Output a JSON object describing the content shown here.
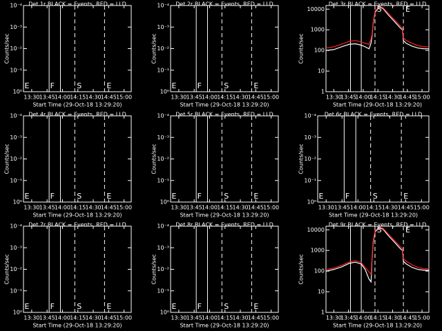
{
  "chart_data": [
    {
      "type": "line",
      "title": "Det 1r BLACK = Events, RED = LLD",
      "ylabel": "Counts/sec",
      "xlabel": "Start Time (29-Oct-18 13:29:20)",
      "log": false,
      "xlim": [
        22,
        127
      ],
      "xticks": [
        {
          "value": 30,
          "label": "13:30"
        },
        {
          "value": 45,
          "label": "13:45"
        },
        {
          "value": 60,
          "label": "14:00"
        },
        {
          "value": 75,
          "label": "14:15"
        },
        {
          "value": 90,
          "label": "14:30"
        },
        {
          "value": 105,
          "label": "14:45"
        },
        {
          "value": 120,
          "label": "15:00"
        }
      ],
      "ylim": [
        0,
        4
      ],
      "yticks": [
        {
          "value": 0,
          "label": "10⁰"
        },
        {
          "value": 1,
          "label": "10⁻¹"
        },
        {
          "value": 2,
          "label": "10⁻²"
        },
        {
          "value": 3,
          "label": "10⁻³"
        },
        {
          "value": 4,
          "label": "10⁻⁴"
        }
      ],
      "markers": [
        {
          "x": 47,
          "style": "solid"
        },
        {
          "x": 58,
          "style": "solid"
        },
        {
          "x": 72,
          "style": "dashed"
        },
        {
          "x": 101,
          "style": "dashed"
        }
      ],
      "labels": [
        {
          "text": "E",
          "x": 23
        },
        {
          "text": "F",
          "x": 48
        },
        {
          "text": "S",
          "x": 74
        },
        {
          "text": "E",
          "x": 103
        }
      ],
      "series": []
    },
    {
      "type": "line",
      "title": "Det 2r BLACK = Events, RED = LLD",
      "ylabel": "Counts/sec",
      "xlabel": "Start Time (29-Oct-18 13:29:20)",
      "log": false,
      "xlim": [
        22,
        127
      ],
      "xticks": [
        {
          "value": 30,
          "label": "13:30"
        },
        {
          "value": 45,
          "label": "13:45"
        },
        {
          "value": 60,
          "label": "14:00"
        },
        {
          "value": 75,
          "label": "14:15"
        },
        {
          "value": 90,
          "label": "14:30"
        },
        {
          "value": 105,
          "label": "14:45"
        },
        {
          "value": 120,
          "label": "15:00"
        }
      ],
      "ylim": [
        0,
        4
      ],
      "yticks": [
        {
          "value": 0,
          "label": "10⁰"
        },
        {
          "value": 1,
          "label": "10⁻¹"
        },
        {
          "value": 2,
          "label": "10⁻²"
        },
        {
          "value": 3,
          "label": "10⁻³"
        },
        {
          "value": 4,
          "label": "10⁻⁴"
        }
      ],
      "markers": [
        {
          "x": 47,
          "style": "solid"
        },
        {
          "x": 58,
          "style": "solid"
        },
        {
          "x": 72,
          "style": "dashed"
        },
        {
          "x": 101,
          "style": "dashed"
        }
      ],
      "labels": [
        {
          "text": "E",
          "x": 23
        },
        {
          "text": "F",
          "x": 48
        },
        {
          "text": "S",
          "x": 74
        },
        {
          "text": "E",
          "x": 103
        }
      ],
      "series": []
    },
    {
      "type": "line",
      "title": "Det 3r BLACK = Events, RED = LLD",
      "ylabel": "Counts/sec",
      "xlabel": "Start Time (29-Oct-18 13:29:20)",
      "log": true,
      "xlim": [
        22,
        127
      ],
      "xticks": [
        {
          "value": 30,
          "label": "13:30"
        },
        {
          "value": 45,
          "label": "13:45"
        },
        {
          "value": 60,
          "label": "14:00"
        },
        {
          "value": 75,
          "label": "14:15"
        },
        {
          "value": 90,
          "label": "14:30"
        },
        {
          "value": 105,
          "label": "14:45"
        },
        {
          "value": 120,
          "label": "15:00"
        }
      ],
      "ylim": [
        1,
        15000
      ],
      "yticks": [
        1,
        10,
        100,
        1000,
        10000
      ],
      "markers": [
        {
          "x": 47,
          "style": "solid"
        },
        {
          "x": 58,
          "style": "solid"
        },
        {
          "x": 72,
          "style": "dashed"
        },
        {
          "x": 101,
          "style": "dashed"
        }
      ],
      "labels": [
        {
          "text": "S",
          "x": 74
        },
        {
          "text": "E",
          "x": 103
        }
      ],
      "x": [
        22,
        30,
        38,
        46,
        52,
        58,
        62,
        66,
        68,
        69,
        70,
        72,
        76,
        80,
        86,
        92,
        98,
        100,
        101,
        104,
        110,
        116,
        122,
        127
      ],
      "series": [
        {
          "name": "Events",
          "color": "#ffffff",
          "values": [
            100,
            110,
            150,
            200,
            210,
            180,
            150,
            120,
            230,
            500,
            1800,
            7000,
            12000,
            11000,
            5000,
            2500,
            1200,
            1000,
            300,
            220,
            160,
            130,
            120,
            120
          ]
        },
        {
          "name": "LLD",
          "color": "#ff2020",
          "values": [
            130,
            150,
            200,
            280,
            300,
            260,
            220,
            200,
            350,
            600,
            2000,
            8000,
            13000,
            12000,
            6000,
            3000,
            1500,
            1200,
            400,
            300,
            220,
            170,
            150,
            150
          ]
        }
      ]
    },
    {
      "type": "line",
      "title": "Det 4r BLACK = Events, RED = LLD",
      "ylabel": "Counts/sec",
      "xlabel": "Start Time (29-Oct-18 13:29:20)",
      "log": false,
      "xlim": [
        22,
        127
      ],
      "xticks": [
        {
          "value": 30,
          "label": "13:30"
        },
        {
          "value": 45,
          "label": "13:45"
        },
        {
          "value": 60,
          "label": "14:00"
        },
        {
          "value": 75,
          "label": "14:15"
        },
        {
          "value": 90,
          "label": "14:30"
        },
        {
          "value": 105,
          "label": "14:45"
        },
        {
          "value": 120,
          "label": "15:00"
        }
      ],
      "ylim": [
        0,
        4
      ],
      "yticks": [
        {
          "value": 0,
          "label": "10⁰"
        },
        {
          "value": 1,
          "label": "10⁻¹"
        },
        {
          "value": 2,
          "label": "10⁻²"
        },
        {
          "value": 3,
          "label": "10⁻³"
        },
        {
          "value": 4,
          "label": "10⁻⁴"
        }
      ],
      "markers": [
        {
          "x": 47,
          "style": "solid"
        },
        {
          "x": 58,
          "style": "solid"
        },
        {
          "x": 72,
          "style": "dashed"
        },
        {
          "x": 101,
          "style": "dashed"
        }
      ],
      "labels": [
        {
          "text": "E",
          "x": 23
        },
        {
          "text": "F",
          "x": 48
        },
        {
          "text": "S",
          "x": 74
        },
        {
          "text": "E",
          "x": 103
        }
      ],
      "series": []
    },
    {
      "type": "line",
      "title": "Det 5r BLACK = Events, RED = LLD",
      "ylabel": "Counts/sec",
      "xlabel": "Start Time (29-Oct-18 13:29:20)",
      "log": false,
      "xlim": [
        22,
        127
      ],
      "xticks": [
        {
          "value": 30,
          "label": "13:30"
        },
        {
          "value": 45,
          "label": "13:45"
        },
        {
          "value": 60,
          "label": "14:00"
        },
        {
          "value": 75,
          "label": "14:15"
        },
        {
          "value": 90,
          "label": "14:30"
        },
        {
          "value": 105,
          "label": "14:45"
        },
        {
          "value": 120,
          "label": "15:00"
        }
      ],
      "ylim": [
        0,
        4
      ],
      "yticks": [
        {
          "value": 0,
          "label": "10⁰"
        },
        {
          "value": 1,
          "label": "10⁻¹"
        },
        {
          "value": 2,
          "label": "10⁻²"
        },
        {
          "value": 3,
          "label": "10⁻³"
        },
        {
          "value": 4,
          "label": "10⁻⁴"
        }
      ],
      "markers": [
        {
          "x": 47,
          "style": "solid"
        },
        {
          "x": 58,
          "style": "solid"
        },
        {
          "x": 72,
          "style": "dashed"
        },
        {
          "x": 101,
          "style": "dashed"
        }
      ],
      "labels": [
        {
          "text": "E",
          "x": 23
        },
        {
          "text": "F",
          "x": 48
        },
        {
          "text": "S",
          "x": 74
        },
        {
          "text": "E",
          "x": 103
        }
      ],
      "series": []
    },
    {
      "type": "line",
      "title": "Det 6r BLACK = Events, RED = LLD",
      "ylabel": "Counts/sec",
      "xlabel": "Start Time (29-Oct-18 13:29:20)",
      "log": false,
      "xlim": [
        22,
        127
      ],
      "xticks": [
        {
          "value": 30,
          "label": "13:30"
        },
        {
          "value": 45,
          "label": "13:45"
        },
        {
          "value": 60,
          "label": "14:00"
        },
        {
          "value": 75,
          "label": "14:15"
        },
        {
          "value": 90,
          "label": "14:30"
        },
        {
          "value": 105,
          "label": "14:45"
        },
        {
          "value": 120,
          "label": "15:00"
        }
      ],
      "ylim": [
        0,
        4
      ],
      "yticks": [
        {
          "value": 0,
          "label": "10⁰"
        },
        {
          "value": 1,
          "label": "10⁻¹"
        },
        {
          "value": 2,
          "label": "10⁻²"
        },
        {
          "value": 3,
          "label": "10⁻³"
        },
        {
          "value": 4,
          "label": "10⁻⁴"
        }
      ],
      "markers": [
        {
          "x": 47,
          "style": "solid"
        },
        {
          "x": 58,
          "style": "solid"
        },
        {
          "x": 72,
          "style": "dashed"
        },
        {
          "x": 101,
          "style": "dashed"
        }
      ],
      "labels": [
        {
          "text": "E",
          "x": 23
        },
        {
          "text": "F",
          "x": 48
        },
        {
          "text": "S",
          "x": 74
        },
        {
          "text": "E",
          "x": 103
        }
      ],
      "series": []
    },
    {
      "type": "line",
      "title": "Det 7r BLACK = Events, RED = LLD",
      "ylabel": "Counts/sec",
      "xlabel": "Start Time (29-Oct-18 13:29:20)",
      "log": false,
      "xlim": [
        22,
        127
      ],
      "xticks": [
        {
          "value": 30,
          "label": "13:30"
        },
        {
          "value": 45,
          "label": "13:45"
        },
        {
          "value": 60,
          "label": "14:00"
        },
        {
          "value": 75,
          "label": "14:15"
        },
        {
          "value": 90,
          "label": "14:30"
        },
        {
          "value": 105,
          "label": "14:45"
        },
        {
          "value": 120,
          "label": "15:00"
        }
      ],
      "ylim": [
        0,
        4
      ],
      "yticks": [
        {
          "value": 0,
          "label": "10⁰"
        },
        {
          "value": 1,
          "label": "10⁻¹"
        },
        {
          "value": 2,
          "label": "10⁻²"
        },
        {
          "value": 3,
          "label": "10⁻³"
        },
        {
          "value": 4,
          "label": "10⁻⁴"
        }
      ],
      "markers": [
        {
          "x": 47,
          "style": "solid"
        },
        {
          "x": 58,
          "style": "solid"
        },
        {
          "x": 72,
          "style": "dashed"
        },
        {
          "x": 101,
          "style": "dashed"
        }
      ],
      "labels": [
        {
          "text": "E",
          "x": 23
        },
        {
          "text": "F",
          "x": 48
        },
        {
          "text": "S",
          "x": 74
        },
        {
          "text": "E",
          "x": 103
        }
      ],
      "series": []
    },
    {
      "type": "line",
      "title": "Det 8r BLACK = Events, RED = LLD",
      "ylabel": "Counts/sec",
      "xlabel": "Start Time (29-Oct-18 13:29:20)",
      "log": false,
      "xlim": [
        22,
        127
      ],
      "xticks": [
        {
          "value": 30,
          "label": "13:30"
        },
        {
          "value": 45,
          "label": "13:45"
        },
        {
          "value": 60,
          "label": "14:00"
        },
        {
          "value": 75,
          "label": "14:15"
        },
        {
          "value": 90,
          "label": "14:30"
        },
        {
          "value": 105,
          "label": "14:45"
        },
        {
          "value": 120,
          "label": "15:00"
        }
      ],
      "ylim": [
        0,
        4
      ],
      "yticks": [
        {
          "value": 0,
          "label": "10⁰"
        },
        {
          "value": 1,
          "label": "10⁻¹"
        },
        {
          "value": 2,
          "label": "10⁻²"
        },
        {
          "value": 3,
          "label": "10⁻³"
        },
        {
          "value": 4,
          "label": "10⁻⁴"
        }
      ],
      "markers": [
        {
          "x": 47,
          "style": "solid"
        },
        {
          "x": 58,
          "style": "solid"
        },
        {
          "x": 72,
          "style": "dashed"
        },
        {
          "x": 101,
          "style": "dashed"
        }
      ],
      "labels": [
        {
          "text": "E",
          "x": 23
        },
        {
          "text": "F",
          "x": 48
        },
        {
          "text": "S",
          "x": 74
        },
        {
          "text": "E",
          "x": 103
        }
      ],
      "series": []
    },
    {
      "type": "line",
      "title": "Det 9r BLACK = Events, RED = LLD",
      "ylabel": "Counts/sec",
      "xlabel": "Start Time (29-Oct-18 13:29:20)",
      "log": true,
      "xlim": [
        22,
        127
      ],
      "xticks": [
        {
          "value": 30,
          "label": "13:30"
        },
        {
          "value": 45,
          "label": "13:45"
        },
        {
          "value": 60,
          "label": "14:00"
        },
        {
          "value": 75,
          "label": "14:15"
        },
        {
          "value": 90,
          "label": "14:30"
        },
        {
          "value": 105,
          "label": "14:45"
        },
        {
          "value": 120,
          "label": "15:00"
        }
      ],
      "ylim": [
        1,
        15000
      ],
      "yticks": [
        1,
        10,
        100,
        1000,
        10000
      ],
      "markers": [
        {
          "x": 47,
          "style": "solid"
        },
        {
          "x": 58,
          "style": "solid"
        },
        {
          "x": 72,
          "style": "dashed"
        },
        {
          "x": 101,
          "style": "dashed"
        }
      ],
      "labels": [
        {
          "text": "S",
          "x": 74
        },
        {
          "text": "E",
          "x": 103
        }
      ],
      "x": [
        22,
        30,
        38,
        46,
        52,
        58,
        62,
        66,
        68,
        69,
        70,
        72,
        76,
        80,
        86,
        92,
        98,
        100,
        101,
        104,
        110,
        116,
        122,
        127
      ],
      "series": [
        {
          "name": "Events",
          "color": "#ffffff",
          "values": [
            100,
            120,
            160,
            240,
            270,
            220,
            120,
            40,
            30,
            400,
            2000,
            8000,
            12000,
            11000,
            5000,
            2500,
            1200,
            1000,
            300,
            220,
            150,
            120,
            110,
            110
          ]
        },
        {
          "name": "LLD",
          "color": "#ff2020",
          "values": [
            120,
            140,
            190,
            280,
            320,
            260,
            150,
            90,
            70,
            500,
            2500,
            9000,
            13000,
            12000,
            6000,
            3000,
            1500,
            1200,
            400,
            300,
            200,
            150,
            130,
            130
          ]
        }
      ]
    }
  ]
}
